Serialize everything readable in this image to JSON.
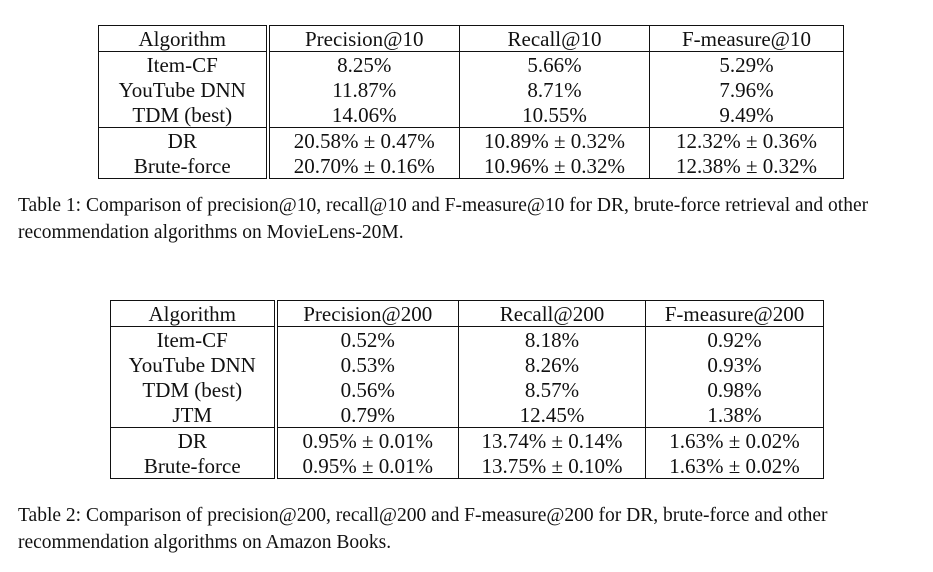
{
  "table1": {
    "headers": [
      "Algorithm",
      "Precision@10",
      "Recall@10",
      "F-measure@10"
    ],
    "rows": [
      [
        "Item-CF",
        "8.25%",
        "5.66%",
        "5.29%"
      ],
      [
        "YouTube DNN",
        "11.87%",
        "8.71%",
        "7.96%"
      ],
      [
        "TDM (best)",
        "14.06%",
        "10.55%",
        "9.49%"
      ],
      [
        "DR",
        "20.58% ± 0.47%",
        "10.89% ± 0.32%",
        "12.32% ± 0.36%"
      ],
      [
        "Brute-force",
        "20.70% ± 0.16%",
        "10.96% ± 0.32%",
        "12.38% ± 0.32%"
      ]
    ],
    "caption": "Table 1: Comparison of precision@10, recall@10 and F-measure@10 for DR, brute-force retrieval and other recommendation algorithms on MovieLens-20M."
  },
  "table2": {
    "headers": [
      "Algorithm",
      "Precision@200",
      "Recall@200",
      "F-measure@200"
    ],
    "rows": [
      [
        "Item-CF",
        "0.52%",
        "8.18%",
        "0.92%"
      ],
      [
        "YouTube DNN",
        "0.53%",
        "8.26%",
        "0.93%"
      ],
      [
        "TDM (best)",
        "0.56%",
        "8.57%",
        "0.98%"
      ],
      [
        "JTM",
        "0.79%",
        "12.45%",
        "1.38%"
      ],
      [
        "DR",
        "0.95% ± 0.01%",
        "13.74% ± 0.14%",
        "1.63% ± 0.02%"
      ],
      [
        "Brute-force",
        "0.95% ± 0.01%",
        "13.75% ± 0.10%",
        "1.63% ± 0.02%"
      ]
    ],
    "caption": "Table 2: Comparison of precision@200, recall@200 and F-measure@200 for DR, brute-force and other recommendation algorithms on Amazon Books."
  }
}
